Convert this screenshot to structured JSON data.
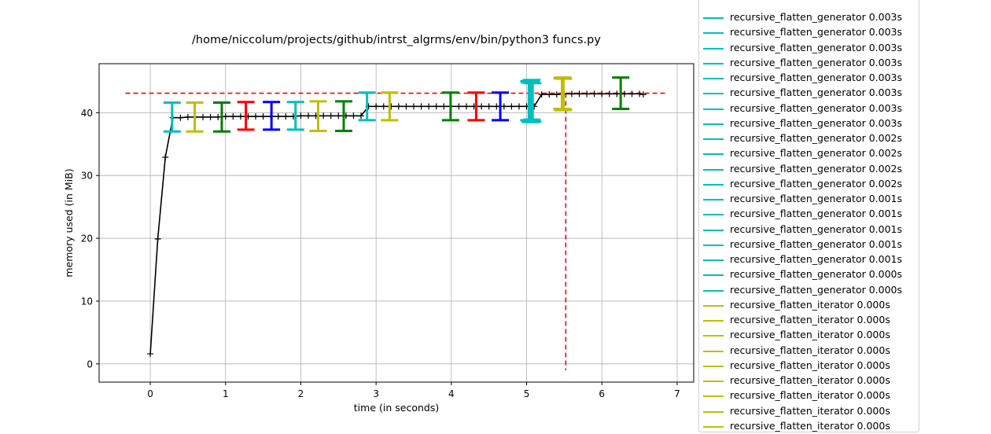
{
  "chart_data": {
    "type": "line",
    "title": "/home/niccolum/projects/github/intrst_algrms/env/bin/python3 funcs.py",
    "xlabel": "time (in seconds)",
    "ylabel": "memory used (in MiB)",
    "xlim": [
      -0.68,
      7.22
    ],
    "ylim": [
      -2.9,
      47.8
    ],
    "xticks": [
      0,
      1,
      2,
      3,
      4,
      5,
      6,
      7
    ],
    "yticks": [
      0,
      10,
      20,
      30,
      40
    ],
    "grid": true,
    "legend_position": "outside-right",
    "series": [
      {
        "color": "#000000",
        "marker": "+",
        "x": [
          0.0,
          0.1,
          0.2,
          0.3,
          0.4,
          0.5,
          0.6,
          0.7,
          0.8,
          0.9,
          1.0,
          1.1,
          1.2,
          1.3,
          1.4,
          1.5,
          1.6,
          1.7,
          1.8,
          1.9,
          2.0,
          2.1,
          2.2,
          2.3,
          2.4,
          2.5,
          2.6,
          2.7,
          2.8,
          2.9,
          3.0,
          3.1,
          3.2,
          3.3,
          3.4,
          3.5,
          3.6,
          3.7,
          3.8,
          3.9,
          4.0,
          4.1,
          4.2,
          4.3,
          4.4,
          4.5,
          4.6,
          4.7,
          4.8,
          4.9,
          5.0,
          5.1,
          5.2,
          5.3,
          5.4,
          5.5,
          5.6,
          5.7,
          5.8,
          5.9,
          6.0,
          6.1,
          6.2,
          6.3,
          6.4,
          6.5,
          6.55
        ],
        "y": [
          1.6,
          19.9,
          32.9,
          39.2,
          39.2,
          39.3,
          39.3,
          39.3,
          39.3,
          39.3,
          39.4,
          39.4,
          39.4,
          39.4,
          39.4,
          39.4,
          39.4,
          39.4,
          39.4,
          39.4,
          39.5,
          39.5,
          39.5,
          39.5,
          39.5,
          39.5,
          39.5,
          39.5,
          39.5,
          41.0,
          41.0,
          41.0,
          41.0,
          41.0,
          41.0,
          41.0,
          41.0,
          41.0,
          41.0,
          41.0,
          41.0,
          41.0,
          41.0,
          41.0,
          41.0,
          41.0,
          41.0,
          41.0,
          41.0,
          41.0,
          41.0,
          41.0,
          42.9,
          42.9,
          42.9,
          43.0,
          43.0,
          43.0,
          43.0,
          43.0,
          43.0,
          43.0,
          43.0,
          43.0,
          43.0,
          43.0,
          42.9
        ]
      }
    ],
    "max_memory_line": {
      "y": 43.1,
      "x": 5.52,
      "color": "#ff0000"
    },
    "function_brackets": [
      {
        "x": 0.29,
        "low": 37.0,
        "high": 41.6,
        "color": "#00bfbf"
      },
      {
        "x": 0.59,
        "low": 37.0,
        "high": 41.6,
        "color": "#bfbf00"
      },
      {
        "x": 0.95,
        "low": 37.0,
        "high": 41.6,
        "color": "#008000"
      },
      {
        "x": 1.27,
        "low": 37.3,
        "high": 41.7,
        "color": "#ff0000"
      },
      {
        "x": 1.61,
        "low": 37.3,
        "high": 41.7,
        "color": "#0000ff"
      },
      {
        "x": 1.93,
        "low": 37.3,
        "high": 41.7,
        "color": "#00bfbf"
      },
      {
        "x": 2.23,
        "low": 37.1,
        "high": 41.8,
        "color": "#bfbf00"
      },
      {
        "x": 2.57,
        "low": 37.1,
        "high": 41.8,
        "color": "#008000"
      },
      {
        "x": 2.88,
        "low": 38.8,
        "high": 43.2,
        "color": "#00bfbf"
      },
      {
        "x": 3.18,
        "low": 38.8,
        "high": 43.2,
        "color": "#bfbf00"
      },
      {
        "x": 3.99,
        "low": 38.8,
        "high": 43.2,
        "color": "#008000"
      },
      {
        "x": 4.33,
        "low": 38.8,
        "high": 43.2,
        "color": "#ff0000"
      },
      {
        "x": 4.65,
        "low": 38.8,
        "high": 43.2,
        "color": "#0000ff"
      },
      {
        "x": 5.03,
        "low": 38.8,
        "high": 45.0,
        "color": "#00bfbf"
      },
      {
        "x": 5.04,
        "low": 38.7,
        "high": 44.8,
        "color": "#00bfbf"
      },
      {
        "x": 5.05,
        "low": 38.6,
        "high": 45.1,
        "color": "#00bfbf"
      },
      {
        "x": 5.06,
        "low": 38.5,
        "high": 44.9,
        "color": "#00bfbf"
      },
      {
        "x": 5.07,
        "low": 38.9,
        "high": 45.2,
        "color": "#00bfbf"
      },
      {
        "x": 5.08,
        "low": 38.6,
        "high": 44.7,
        "color": "#00bfbf"
      },
      {
        "x": 5.47,
        "low": 40.6,
        "high": 45.5,
        "color": "#bfbf00"
      },
      {
        "x": 5.48,
        "low": 40.4,
        "high": 45.6,
        "color": "#bfbf00"
      },
      {
        "x": 5.49,
        "low": 40.5,
        "high": 45.4,
        "color": "#bfbf00"
      },
      {
        "x": 6.25,
        "low": 40.6,
        "high": 45.6,
        "color": "#008000"
      }
    ],
    "legend": [
      {
        "label": "recursive_flatten_generator 0.003s",
        "color": "#00bfbf"
      },
      {
        "label": "recursive_flatten_generator 0.003s",
        "color": "#00bfbf"
      },
      {
        "label": "recursive_flatten_generator 0.003s",
        "color": "#00bfbf"
      },
      {
        "label": "recursive_flatten_generator 0.003s",
        "color": "#00bfbf"
      },
      {
        "label": "recursive_flatten_generator 0.003s",
        "color": "#00bfbf"
      },
      {
        "label": "recursive_flatten_generator 0.003s",
        "color": "#00bfbf"
      },
      {
        "label": "recursive_flatten_generator 0.003s",
        "color": "#00bfbf"
      },
      {
        "label": "recursive_flatten_generator 0.003s",
        "color": "#00bfbf"
      },
      {
        "label": "recursive_flatten_generator 0.002s",
        "color": "#00bfbf"
      },
      {
        "label": "recursive_flatten_generator 0.002s",
        "color": "#00bfbf"
      },
      {
        "label": "recursive_flatten_generator 0.002s",
        "color": "#00bfbf"
      },
      {
        "label": "recursive_flatten_generator 0.002s",
        "color": "#00bfbf"
      },
      {
        "label": "recursive_flatten_generator 0.001s",
        "color": "#00bfbf"
      },
      {
        "label": "recursive_flatten_generator 0.001s",
        "color": "#00bfbf"
      },
      {
        "label": "recursive_flatten_generator 0.001s",
        "color": "#00bfbf"
      },
      {
        "label": "recursive_flatten_generator 0.001s",
        "color": "#00bfbf"
      },
      {
        "label": "recursive_flatten_generator 0.001s",
        "color": "#00bfbf"
      },
      {
        "label": "recursive_flatten_generator 0.000s",
        "color": "#00bfbf"
      },
      {
        "label": "recursive_flatten_generator 0.000s",
        "color": "#00bfbf"
      },
      {
        "label": "recursive_flatten_iterator 0.000s",
        "color": "#bfbf00"
      },
      {
        "label": "recursive_flatten_iterator 0.000s",
        "color": "#bfbf00"
      },
      {
        "label": "recursive_flatten_iterator 0.000s",
        "color": "#bfbf00"
      },
      {
        "label": "recursive_flatten_iterator 0.000s",
        "color": "#bfbf00"
      },
      {
        "label": "recursive_flatten_iterator 0.000s",
        "color": "#bfbf00"
      },
      {
        "label": "recursive_flatten_iterator 0.000s",
        "color": "#bfbf00"
      },
      {
        "label": "recursive_flatten_iterator 0.000s",
        "color": "#bfbf00"
      },
      {
        "label": "recursive_flatten_iterator 0.000s",
        "color": "#bfbf00"
      },
      {
        "label": "recursive_flatten_iterator 0.000s",
        "color": "#bfbf00"
      }
    ]
  }
}
